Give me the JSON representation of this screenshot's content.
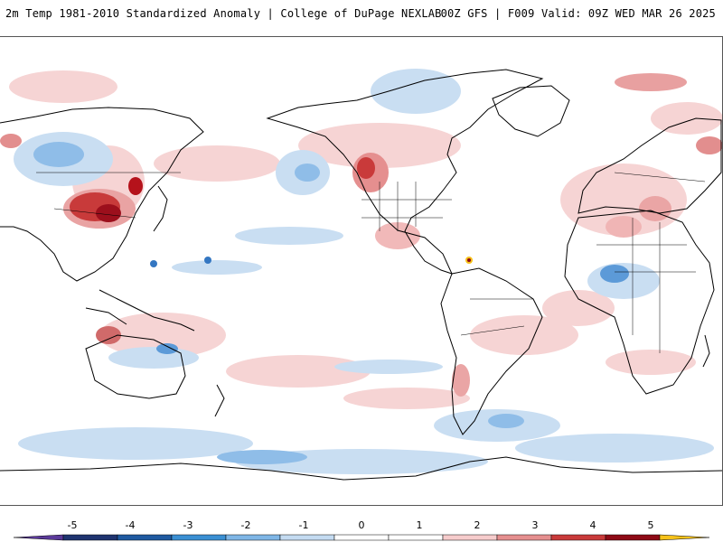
{
  "header": {
    "title": "2m Temp 1981-2010 Standardized Anomaly | College of DuPage NEXLAB",
    "run_info": "00Z GFS | F009 Valid: 09Z WED MAR 26 2025"
  },
  "legend": {
    "ticks": [
      "-5",
      "-4",
      "-3",
      "-2",
      "-1",
      "0",
      "1",
      "2",
      "3",
      "4",
      "5"
    ],
    "colors": {
      "below_min": "#5b3a9a",
      "bins": [
        "#1f3470",
        "#1f5aa0",
        "#3a8fd3",
        "#7fb6e6",
        "#c4dbf1",
        "#ffffff",
        "#ffffff",
        "#f6cccc",
        "#e58f8f",
        "#c93a3a",
        "#8e0a16"
      ],
      "above_max": "#f6c21a"
    }
  },
  "map": {
    "land_outline_color": "#000000",
    "background_color": "#ffffff",
    "cold_color": "#a9c9ea",
    "warm_color": "#f3b7b7",
    "strong_warm_color": "#b5121b",
    "strong_cold_color": "#3477c2"
  }
}
